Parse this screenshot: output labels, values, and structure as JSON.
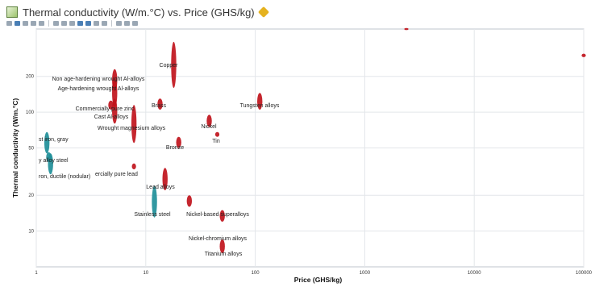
{
  "window": {
    "title": "Thermal conductivity (W/m.°C) vs. Price (GHS/kg)",
    "title_icon": "chart-icon",
    "edit_icon": "pencil-icon"
  },
  "chart_data": {
    "type": "scatter",
    "title": "Thermal conductivity (W/m.°C) vs. Price (GHS/kg)",
    "xlabel": "Price (GHS/kg)",
    "ylabel": "Thermal conductivity (W/m.°C)",
    "xscale": "log",
    "yscale": "log",
    "xlim": [
      1,
      100000
    ],
    "ylim": [
      5,
      500
    ],
    "grid": true,
    "x_ticks": [
      {
        "value": 1,
        "label": "1"
      },
      {
        "value": 10,
        "label": "10"
      },
      {
        "value": 100,
        "label": "100"
      },
      {
        "value": 1000,
        "label": "1000"
      },
      {
        "value": 10000,
        "label": "10000"
      },
      {
        "value": 100000,
        "label": "100000"
      }
    ],
    "y_ticks": [
      {
        "value": 10,
        "label": "10"
      },
      {
        "value": 20,
        "label": "20"
      },
      {
        "value": 50,
        "label": "50"
      },
      {
        "value": 100,
        "label": "100"
      },
      {
        "value": 200,
        "label": "200"
      }
    ],
    "points": [
      {
        "label": "Copper",
        "x": 18,
        "y": 200,
        "y_low": 160,
        "y_high": 390,
        "color": "#c0141c"
      },
      {
        "label": "Non age-hardening wrought Al-alloys",
        "x": 5.2,
        "y": 200,
        "y_low": 150,
        "y_high": 230,
        "color": "#c0141c"
      },
      {
        "label": "Age-hardening wrought Al-alloys",
        "x": 5.2,
        "y": 150,
        "y_low": 110,
        "y_high": 190,
        "color": "#c0141c"
      },
      {
        "label": "Commercially pure zinc",
        "x": 4.8,
        "y": 115,
        "y_low": 105,
        "y_high": 125,
        "color": "#c0141c"
      },
      {
        "label": "Cast Al-alloys",
        "x": 5.2,
        "y": 95,
        "y_low": 80,
        "y_high": 130,
        "color": "#c0141c"
      },
      {
        "label": "Wrought magnesium alloys",
        "x": 7.8,
        "y": 85,
        "y_low": 55,
        "y_high": 115,
        "color": "#c0141c"
      },
      {
        "label": "Brass",
        "x": 13.5,
        "y": 120,
        "y_low": 105,
        "y_high": 130,
        "color": "#c0141c"
      },
      {
        "label": "Tungsten alloys",
        "x": 110,
        "y": 120,
        "y_low": 105,
        "y_high": 145,
        "color": "#c0141c"
      },
      {
        "label": "Nickel",
        "x": 38,
        "y": 85,
        "y_low": 75,
        "y_high": 95,
        "color": "#c0141c"
      },
      {
        "label": "Tin",
        "x": 45,
        "y": 65,
        "y_low": 62,
        "y_high": 68,
        "color": "#c0141c"
      },
      {
        "label": "Bronze",
        "x": 20,
        "y": 58,
        "y_low": 50,
        "y_high": 62,
        "color": "#c0141c"
      },
      {
        "label": "Cast iron, gray",
        "x": 1.25,
        "y": 55,
        "y_low": 45,
        "y_high": 68,
        "color": "#1f8f99"
      },
      {
        "label": "Low alloy steel",
        "x": 1.3,
        "y": 42,
        "y_low": 38,
        "y_high": 46,
        "color": "#1f8f99"
      },
      {
        "label": "Cast iron, ductile (nodular)",
        "x": 1.35,
        "y": 38,
        "y_low": 30,
        "y_high": 45,
        "color": "#1f8f99"
      },
      {
        "label": "Commercially pure lead",
        "x": 7.8,
        "y": 35,
        "y_low": 33,
        "y_high": 37,
        "color": "#c0141c"
      },
      {
        "label": "Lead alloys",
        "x": 15,
        "y": 28,
        "y_low": 22,
        "y_high": 34,
        "color": "#c0141c"
      },
      {
        "label": "Stainless steel",
        "x": 12,
        "y": 18,
        "y_low": 13,
        "y_high": 24,
        "color": "#1f8f99"
      },
      {
        "label": "Nickel-based superalloys",
        "x": 25,
        "y": 18,
        "y_low": 16,
        "y_high": 20,
        "color": "#c0141c"
      },
      {
        "label": "Nickel-chromium alloys",
        "x": 50,
        "y": 14,
        "y_low": 12,
        "y_high": 15,
        "color": "#c0141c"
      },
      {
        "label": "Titanium alloys",
        "x": 50,
        "y": 7,
        "y_low": 6.5,
        "y_high": 8.5,
        "color": "#c0141c"
      },
      {
        "label": "",
        "x": 2400,
        "y": 500,
        "y_low": 490,
        "y_high": 510,
        "color": "#c0141c"
      },
      {
        "label": "",
        "x": 100000,
        "y": 300,
        "y_low": 290,
        "y_high": 310,
        "color": "#c0141c"
      }
    ],
    "label_texts": [
      "Copper",
      "Non age-hardening wrought Al-alloys",
      "Age-hardening wrought Al-alloys",
      "Commercially pure zinc",
      "Cast Al-alloys",
      "Brass",
      "Tungsten alloys",
      "Wrought magnesium alloys",
      "Nickel",
      "Tin",
      "Bronze",
      "st iron, gray",
      "y alloy steel",
      "ron, ductile (nodular)",
      "ercially pure lead",
      "Lead alloys",
      "Stainless steel",
      "Nickel-based superalloys",
      "Nickel-chromium alloys",
      "Titanium alloys"
    ]
  }
}
